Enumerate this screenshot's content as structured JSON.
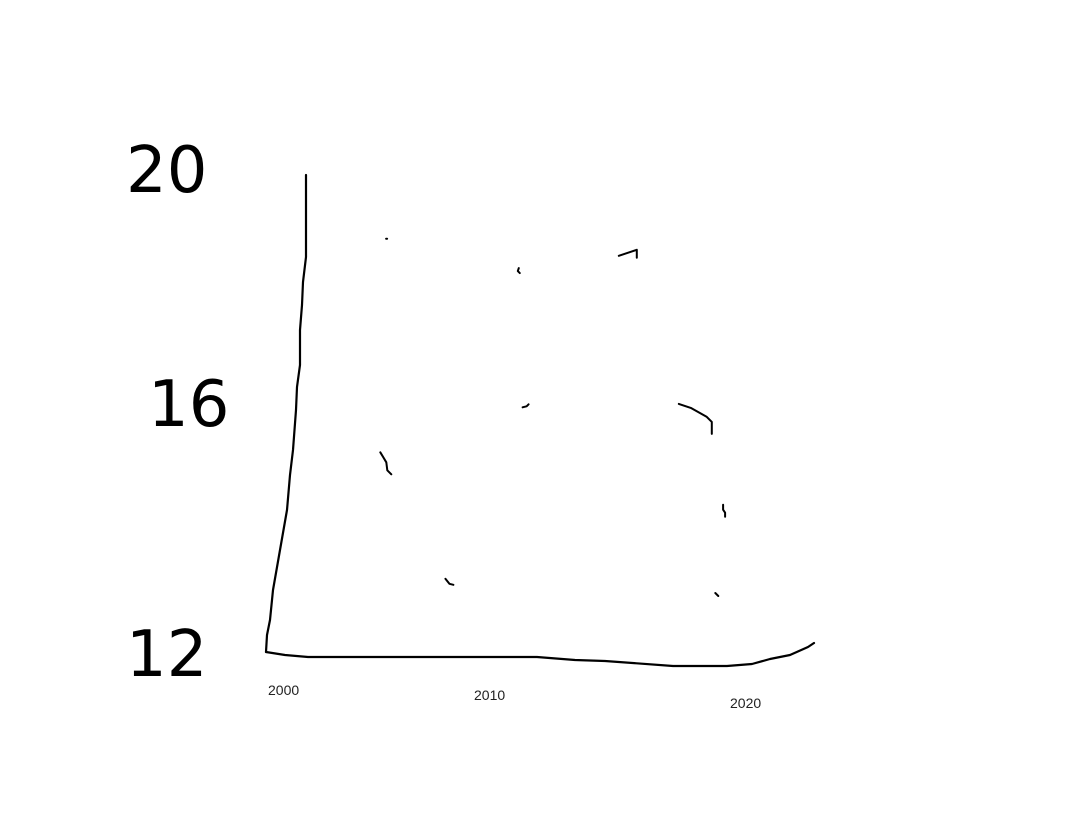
{
  "chart_data": {
    "type": "scatter",
    "title": "",
    "xlabel": "",
    "ylabel": "",
    "x_ticks": [
      "2000",
      "2010",
      "2020"
    ],
    "y_ticks": [
      "12",
      "16",
      "20"
    ],
    "xlim": [
      2000,
      2023
    ],
    "ylim": [
      12,
      20
    ],
    "grid": false,
    "legend": "none",
    "series": [
      {
        "points": [
          {
            "x": 2004.5,
            "y": 19.5
          },
          {
            "x": 2010.3,
            "y": 18.9
          },
          {
            "x": 2015.5,
            "y": 19.3
          },
          {
            "x": 2004.2,
            "y": 15.4
          },
          {
            "x": 2010.6,
            "y": 16.5
          },
          {
            "x": 2018.8,
            "y": 16.2
          },
          {
            "x": 2007.2,
            "y": 13.3
          },
          {
            "x": 2019.3,
            "y": 14.6
          },
          {
            "x": 2019.0,
            "y": 13.1
          }
        ]
      }
    ]
  }
}
